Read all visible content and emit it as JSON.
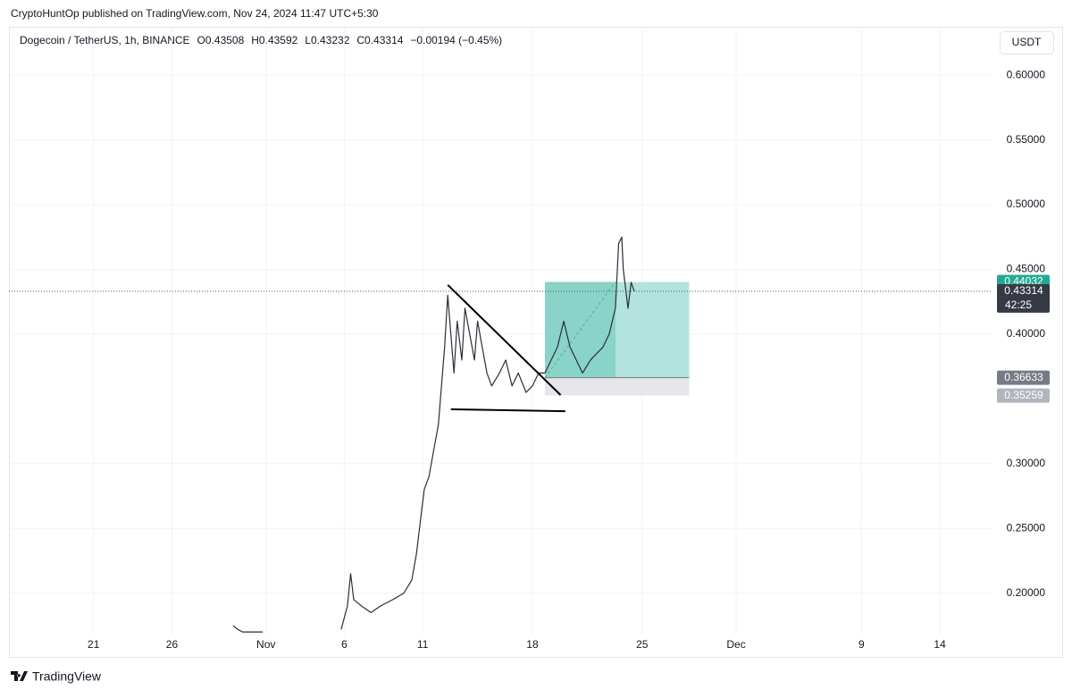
{
  "header": "CryptoHuntOp published on TradingView.com, Nov 24, 2024 11:47 UTC+5:30",
  "footer": "TradingView",
  "currency_button": "USDT",
  "countdown": "42:25",
  "chart_data": {
    "type": "line",
    "legend": [
      "Dogecoin / TetherUS, 1h, BINANCE",
      "O0.43508",
      "H0.43592",
      "L0.43232",
      "C0.43314",
      "−0.00194 (−0.45%)"
    ],
    "x": [
      29.9,
      30.2,
      30.5,
      31.0,
      31.8,
      null,
      36.8,
      37.2,
      37.4,
      37.6,
      38.1,
      38.7,
      39.3,
      40.1,
      40.8,
      41.3,
      41.6,
      41.8,
      42.1,
      42.4,
      42.7,
      43.0,
      43.2,
      43.4,
      43.6,
      43.8,
      44.0,
      44.2,
      44.5,
      44.7,
      45.0,
      45.3,
      45.5,
      45.8,
      46.1,
      46.4,
      46.9,
      47.3,
      47.7,
      48.1,
      48.6,
      49.0,
      49.4,
      49.8,
      50.2,
      50.6,
      51.0,
      51.4,
      51.8,
      52.2,
      52.7,
      53.1,
      53.5,
      53.9,
      54.3,
      54.5,
      54.7,
      54.8,
      55.1,
      55.3,
      55.5
    ],
    "series": [
      {
        "color": "#2a2e39",
        "values": [
          0.175,
          0.172,
          0.17,
          0.17,
          0.17,
          null,
          0.172,
          0.19,
          0.215,
          0.195,
          0.19,
          0.185,
          0.19,
          0.195,
          0.2,
          0.21,
          0.23,
          0.25,
          0.28,
          0.29,
          0.31,
          0.33,
          0.36,
          0.39,
          0.43,
          0.4,
          0.37,
          0.41,
          0.38,
          0.42,
          0.4,
          0.38,
          0.41,
          0.39,
          0.37,
          0.36,
          0.37,
          0.38,
          0.36,
          0.37,
          0.355,
          0.36,
          0.37,
          0.37,
          0.38,
          0.39,
          0.41,
          0.39,
          0.38,
          0.37,
          0.38,
          0.385,
          0.39,
          0.4,
          0.42,
          0.47,
          0.475,
          0.45,
          0.42,
          0.44,
          0.43314
        ]
      }
    ],
    "xlim": [
      15.6,
      78.3
    ],
    "xticks": [
      {
        "value": 21,
        "label": "21"
      },
      {
        "value": 26,
        "label": "26"
      },
      {
        "value": 32,
        "label": "Nov"
      },
      {
        "value": 37,
        "label": "6"
      },
      {
        "value": 42,
        "label": "11"
      },
      {
        "value": 49,
        "label": "18"
      },
      {
        "value": 56,
        "label": "25"
      },
      {
        "value": 62,
        "label": "Dec"
      },
      {
        "value": 70,
        "label": "9"
      },
      {
        "value": 75,
        "label": "14"
      }
    ],
    "ylim": [
      0.168,
      0.636
    ],
    "yticks": [
      {
        "value": 0.2,
        "label": "0.20000"
      },
      {
        "value": 0.25,
        "label": "0.25000"
      },
      {
        "value": 0.3,
        "label": "0.30000"
      },
      {
        "value": 0.4,
        "label": "0.40000"
      },
      {
        "value": 0.45,
        "label": "0.45000"
      },
      {
        "value": 0.5,
        "label": "0.50000"
      },
      {
        "value": 0.55,
        "label": "0.55000"
      },
      {
        "value": 0.6,
        "label": "0.60000"
      }
    ],
    "grid": true,
    "price_labels": [
      {
        "value": 0.44032,
        "color": "#22ab94"
      },
      {
        "value": 0.43314,
        "color": "#363a45"
      },
      {
        "value": 0.36633,
        "color": "#787b86"
      },
      {
        "value": 0.35259,
        "color": "#b2b5be"
      }
    ],
    "position": {
      "x_start": 49.8,
      "x_end": 59.0,
      "x_progress": 54.3,
      "entry": 0.36633,
      "target": 0.44032,
      "stop": 0.35259
    },
    "trendlines": [
      {
        "x": [
          43.6,
          50.8
        ],
        "y": [
          0.438,
          0.353
        ]
      },
      {
        "x": [
          43.8,
          51.1
        ],
        "y": [
          0.342,
          0.3405
        ]
      }
    ]
  }
}
